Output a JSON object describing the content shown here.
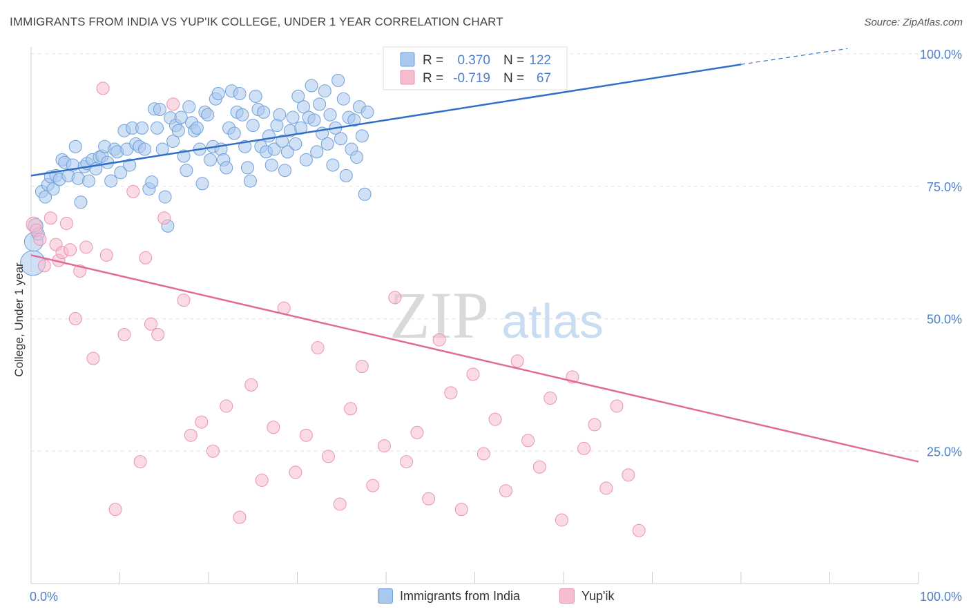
{
  "header": {
    "title": "IMMIGRANTS FROM INDIA VS YUP'IK COLLEGE, UNDER 1 YEAR CORRELATION CHART",
    "source": "Source: ZipAtlas.com"
  },
  "watermark": {
    "zip": "ZIP",
    "atlas": "atlas"
  },
  "colors": {
    "blue_fill": "#a9c8ee",
    "blue_stroke": "#6f9fd8",
    "blue_line": "#2f6fc7",
    "pink_fill": "#f6bcd0",
    "pink_stroke": "#eb92b3",
    "pink_line": "#e06b98",
    "axis_text": "#4d7fc8",
    "grid": "#e3e3e3"
  },
  "chart_data": {
    "type": "scatter",
    "title": "IMMIGRANTS FROM INDIA VS YUP'IK COLLEGE, UNDER 1 YEAR CORRELATION CHART",
    "xlabel": "",
    "ylabel": "College, Under 1 year",
    "xlim": [
      0,
      100
    ],
    "ylim": [
      0,
      100
    ],
    "x_tick_labels": [
      {
        "value": 0,
        "label": "0.0%"
      },
      {
        "value": 100,
        "label": "100.0%"
      }
    ],
    "y_tick_labels": [
      {
        "value": 25,
        "label": "25.0%"
      },
      {
        "value": 50,
        "label": "50.0%"
      },
      {
        "value": 75,
        "label": "75.0%"
      },
      {
        "value": 100,
        "label": "100.0%"
      }
    ],
    "grid": true,
    "legend_position": "top-center",
    "stats": [
      {
        "r_label": "R =",
        "r_value": "0.370",
        "n_label": "N =",
        "n_value": "122"
      },
      {
        "r_label": "R =",
        "r_value": "-0.719",
        "n_label": "N =",
        "n_value": "67"
      }
    ],
    "series": [
      {
        "name": "Immigrants from India",
        "color": "#a9c8ee",
        "trend": {
          "x1": 0,
          "y1": 77,
          "x2": 80,
          "y2": 98,
          "dash_to_x": 92,
          "dash_to_y": 101
        },
        "points": [
          [
            0.2,
            60.5,
            2
          ],
          [
            0.3,
            64.5,
            1.5
          ],
          [
            0.5,
            67.5,
            1.2
          ],
          [
            0.8,
            66.0,
            1
          ],
          [
            1.2,
            74.0,
            1
          ],
          [
            1.6,
            73.0,
            1
          ],
          [
            1.9,
            75.3,
            1
          ],
          [
            2.2,
            76.8,
            1
          ],
          [
            2.5,
            74.5,
            1
          ],
          [
            2.8,
            77.0,
            1
          ],
          [
            3.2,
            76.3,
            1
          ],
          [
            3.5,
            80.0,
            1
          ],
          [
            3.8,
            79.5,
            1
          ],
          [
            4.2,
            77.0,
            1
          ],
          [
            4.7,
            79.0,
            1
          ],
          [
            5.0,
            82.5,
            1
          ],
          [
            5.3,
            76.5,
            1
          ],
          [
            5.6,
            72.0,
            1
          ],
          [
            6.0,
            78.7,
            1
          ],
          [
            6.3,
            79.3,
            1
          ],
          [
            6.5,
            76.0,
            1
          ],
          [
            6.9,
            80.0,
            1
          ],
          [
            7.3,
            78.3,
            1
          ],
          [
            7.7,
            80.5,
            1
          ],
          [
            8.0,
            80.7,
            1
          ],
          [
            8.3,
            82.5,
            1
          ],
          [
            8.6,
            79.5,
            1
          ],
          [
            9.0,
            76.0,
            1
          ],
          [
            9.4,
            82.0,
            1
          ],
          [
            9.7,
            81.5,
            1
          ],
          [
            10.1,
            77.6,
            1
          ],
          [
            10.5,
            85.5,
            1
          ],
          [
            10.8,
            82.0,
            1
          ],
          [
            11.1,
            79.0,
            1
          ],
          [
            11.4,
            86.0,
            1
          ],
          [
            11.8,
            83.0,
            1
          ],
          [
            12.2,
            82.5,
            1
          ],
          [
            12.5,
            86.0,
            1
          ],
          [
            12.8,
            82.0,
            1
          ],
          [
            13.3,
            74.5,
            1
          ],
          [
            13.6,
            75.8,
            1
          ],
          [
            13.9,
            89.6,
            1
          ],
          [
            14.2,
            86.0,
            1
          ],
          [
            14.5,
            89.5,
            1
          ],
          [
            14.8,
            82.0,
            1
          ],
          [
            15.1,
            73.0,
            1
          ],
          [
            15.4,
            67.5,
            1
          ],
          [
            15.7,
            87.9,
            1
          ],
          [
            16.0,
            83.5,
            1
          ],
          [
            16.3,
            86.5,
            1
          ],
          [
            16.6,
            85.5,
            1
          ],
          [
            16.9,
            88.0,
            1
          ],
          [
            17.2,
            80.7,
            1
          ],
          [
            17.5,
            78.0,
            1
          ],
          [
            17.8,
            90.0,
            1
          ],
          [
            18.1,
            87.0,
            1
          ],
          [
            18.4,
            85.5,
            1
          ],
          [
            18.7,
            86.0,
            1
          ],
          [
            19.0,
            82.0,
            1
          ],
          [
            19.3,
            75.5,
            1
          ],
          [
            19.6,
            89.0,
            1
          ],
          [
            19.9,
            88.5,
            1
          ],
          [
            20.2,
            80.0,
            1
          ],
          [
            20.5,
            82.5,
            1
          ],
          [
            20.8,
            91.5,
            1
          ],
          [
            21.1,
            92.5,
            1
          ],
          [
            21.4,
            82.0,
            1
          ],
          [
            21.7,
            80.0,
            1
          ],
          [
            22.0,
            78.5,
            1
          ],
          [
            22.3,
            86.0,
            1
          ],
          [
            22.6,
            93.0,
            1
          ],
          [
            22.9,
            85.0,
            1
          ],
          [
            23.2,
            89.0,
            1
          ],
          [
            23.5,
            92.5,
            1
          ],
          [
            23.8,
            88.5,
            1
          ],
          [
            24.1,
            82.5,
            1
          ],
          [
            24.4,
            78.5,
            1
          ],
          [
            24.7,
            76.0,
            1
          ],
          [
            25.0,
            86.5,
            1
          ],
          [
            25.3,
            92.0,
            1
          ],
          [
            25.6,
            89.5,
            1
          ],
          [
            25.9,
            82.5,
            1
          ],
          [
            26.2,
            89.0,
            1
          ],
          [
            26.5,
            81.5,
            1
          ],
          [
            26.8,
            84.5,
            1
          ],
          [
            27.1,
            79.0,
            1
          ],
          [
            27.4,
            82.0,
            1
          ],
          [
            27.7,
            86.5,
            1
          ],
          [
            28.0,
            88.5,
            1
          ],
          [
            28.3,
            83.5,
            1
          ],
          [
            28.6,
            78.0,
            1
          ],
          [
            28.9,
            81.5,
            1
          ],
          [
            29.2,
            85.5,
            1
          ],
          [
            29.5,
            88.0,
            1
          ],
          [
            29.8,
            83.0,
            1
          ],
          [
            30.1,
            92.0,
            1
          ],
          [
            30.4,
            86.0,
            1
          ],
          [
            30.7,
            90.0,
            1
          ],
          [
            31.0,
            80.0,
            1
          ],
          [
            31.3,
            88.0,
            1
          ],
          [
            31.6,
            94.0,
            1
          ],
          [
            31.9,
            87.5,
            1
          ],
          [
            32.2,
            81.5,
            1
          ],
          [
            32.5,
            90.5,
            1
          ],
          [
            32.8,
            85.0,
            1
          ],
          [
            33.1,
            93.0,
            1
          ],
          [
            33.4,
            83.0,
            1
          ],
          [
            33.7,
            88.5,
            1
          ],
          [
            34.0,
            79.0,
            1
          ],
          [
            34.3,
            86.0,
            1
          ],
          [
            34.6,
            95.0,
            1
          ],
          [
            34.9,
            84.0,
            1
          ],
          [
            35.2,
            91.5,
            1
          ],
          [
            35.5,
            77.0,
            1
          ],
          [
            35.8,
            88.0,
            1
          ],
          [
            36.1,
            82.0,
            1
          ],
          [
            36.4,
            87.5,
            1
          ],
          [
            36.7,
            80.5,
            1
          ],
          [
            37.0,
            90.0,
            1
          ],
          [
            37.3,
            84.5,
            1
          ],
          [
            37.6,
            73.5,
            1
          ],
          [
            37.9,
            89.0,
            1
          ]
        ]
      },
      {
        "name": "Yup'ik",
        "color": "#f6bcd0",
        "trend": {
          "x1": 0,
          "y1": 62,
          "x2": 100,
          "y2": 23
        },
        "points": [
          [
            0.3,
            67.8,
            1.2
          ],
          [
            0.6,
            66.7,
            1
          ],
          [
            1.0,
            65.0,
            1
          ],
          [
            1.5,
            60.0,
            1
          ],
          [
            2.2,
            69.0,
            1
          ],
          [
            2.8,
            64.0,
            1
          ],
          [
            3.1,
            61.0,
            1
          ],
          [
            3.5,
            62.5,
            1
          ],
          [
            4.0,
            68.0,
            1
          ],
          [
            4.4,
            63.0,
            1
          ],
          [
            5.0,
            50.0,
            1
          ],
          [
            5.5,
            59.0,
            1
          ],
          [
            6.2,
            63.5,
            1
          ],
          [
            7.0,
            42.5,
            1
          ],
          [
            8.1,
            93.5,
            1
          ],
          [
            8.5,
            62.0,
            1
          ],
          [
            9.5,
            14.0,
            1
          ],
          [
            10.5,
            47.0,
            1
          ],
          [
            11.5,
            74.0,
            1
          ],
          [
            12.3,
            23.0,
            1
          ],
          [
            12.9,
            61.5,
            1
          ],
          [
            13.5,
            49.0,
            1
          ],
          [
            14.3,
            47.0,
            1
          ],
          [
            15.0,
            69.0,
            1
          ],
          [
            16.0,
            90.5,
            1
          ],
          [
            17.2,
            53.5,
            1
          ],
          [
            18.0,
            28.0,
            1
          ],
          [
            19.2,
            30.5,
            1
          ],
          [
            20.5,
            25.0,
            1
          ],
          [
            22.0,
            33.5,
            1
          ],
          [
            23.5,
            12.5,
            1
          ],
          [
            24.8,
            37.5,
            1
          ],
          [
            26.0,
            19.5,
            1
          ],
          [
            27.3,
            29.5,
            1
          ],
          [
            28.5,
            52.0,
            1
          ],
          [
            29.8,
            21.0,
            1
          ],
          [
            31.0,
            28.0,
            1
          ],
          [
            32.3,
            44.5,
            1
          ],
          [
            33.5,
            24.0,
            1
          ],
          [
            34.8,
            15.0,
            1
          ],
          [
            36.0,
            33.0,
            1
          ],
          [
            37.3,
            41.0,
            1
          ],
          [
            38.5,
            18.5,
            1
          ],
          [
            39.8,
            26.0,
            1
          ],
          [
            41.0,
            54.0,
            1
          ],
          [
            42.3,
            23.0,
            1
          ],
          [
            43.5,
            28.5,
            1
          ],
          [
            44.8,
            16.0,
            1
          ],
          [
            46.0,
            46.0,
            1
          ],
          [
            47.3,
            36.0,
            1
          ],
          [
            48.5,
            14.0,
            1
          ],
          [
            49.8,
            39.5,
            1
          ],
          [
            51.0,
            24.5,
            1
          ],
          [
            52.3,
            31.0,
            1
          ],
          [
            53.5,
            17.5,
            1
          ],
          [
            54.8,
            42.0,
            1
          ],
          [
            56.0,
            27.0,
            1
          ],
          [
            57.3,
            22.0,
            1
          ],
          [
            58.5,
            35.0,
            1
          ],
          [
            59.8,
            12.0,
            1
          ],
          [
            61.0,
            39.0,
            1
          ],
          [
            62.3,
            25.5,
            1
          ],
          [
            63.5,
            30.0,
            1
          ],
          [
            64.8,
            18.0,
            1
          ],
          [
            66.0,
            33.5,
            1
          ],
          [
            67.3,
            20.5,
            1
          ],
          [
            68.5,
            10.0,
            1
          ]
        ]
      }
    ]
  },
  "legend_bottom": [
    {
      "label": "Immigrants from India"
    },
    {
      "label": "Yup'ik"
    }
  ]
}
